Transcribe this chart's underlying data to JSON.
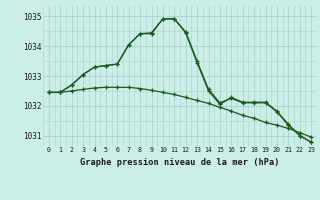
{
  "title": "Graphe pression niveau de la mer (hPa)",
  "background_color": "#cceee8",
  "grid_color": "#aad4cc",
  "line_color": "#1a5c1a",
  "x_labels": [
    "0",
    "1",
    "2",
    "3",
    "4",
    "5",
    "6",
    "7",
    "8",
    "9",
    "10",
    "11",
    "12",
    "13",
    "14",
    "15",
    "16",
    "17",
    "18",
    "19",
    "20",
    "21",
    "22",
    "23"
  ],
  "ylim": [
    1030.65,
    1035.35
  ],
  "yticks": [
    1031,
    1032,
    1033,
    1034,
    1035
  ],
  "series1": [
    1032.45,
    1032.45,
    1032.7,
    1033.05,
    1033.3,
    1033.35,
    1033.4,
    1034.05,
    1034.42,
    1034.42,
    1034.92,
    1034.92,
    1034.48,
    1033.5,
    1032.55,
    1032.1,
    1032.25,
    1032.1,
    1032.1,
    1032.1,
    1031.8,
    1031.35,
    1031.0,
    1030.78
  ],
  "series2": [
    1032.45,
    1032.45,
    1032.7,
    1033.05,
    1033.3,
    1033.35,
    1033.4,
    1034.05,
    1034.42,
    1034.45,
    1034.92,
    1034.92,
    1034.45,
    1033.45,
    1032.5,
    1032.05,
    1032.28,
    1032.12,
    1032.12,
    1032.12,
    1031.82,
    1031.38,
    1031.0,
    1030.78
  ],
  "series3": [
    1032.45,
    1032.45,
    1032.5,
    1032.55,
    1032.6,
    1032.62,
    1032.62,
    1032.62,
    1032.58,
    1032.52,
    1032.45,
    1032.38,
    1032.28,
    1032.18,
    1032.08,
    1031.95,
    1031.82,
    1031.68,
    1031.58,
    1031.44,
    1031.35,
    1031.24,
    1031.1,
    1030.95
  ]
}
